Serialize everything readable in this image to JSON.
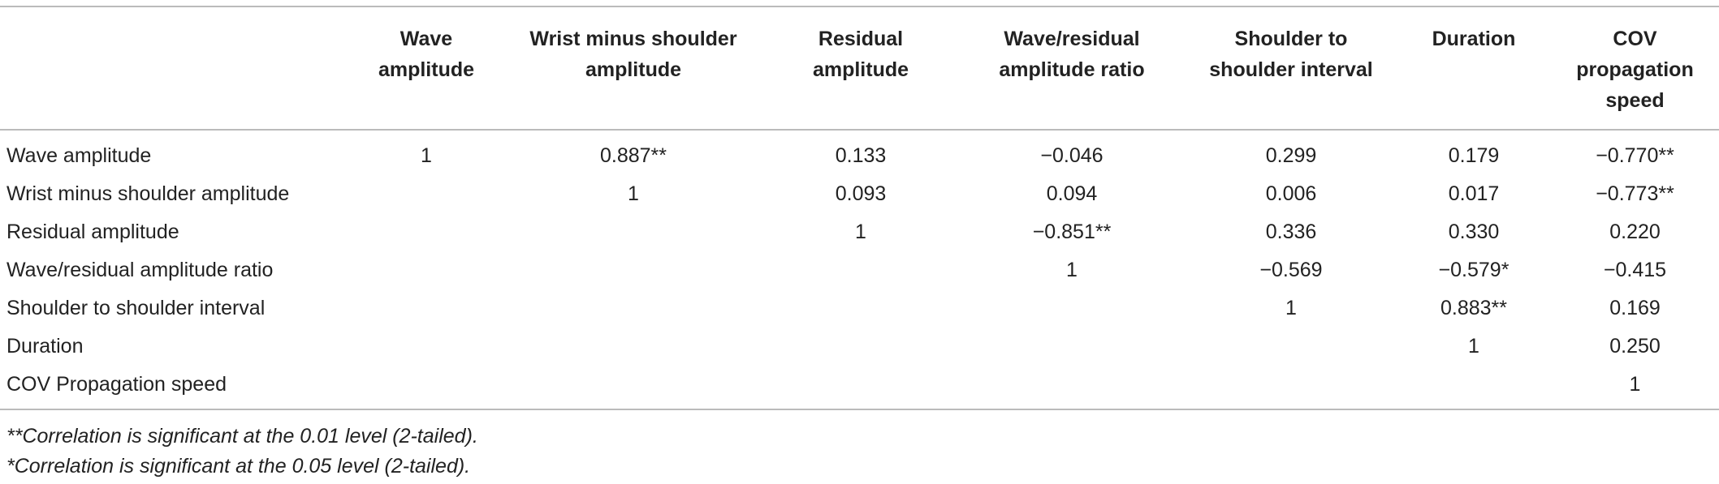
{
  "table": {
    "header": [
      "Wave amplitude",
      "Wrist minus shoulder amplitude",
      "Residual amplitude",
      "Wave/residual amplitude ratio",
      "Shoulder to shoulder interval",
      "Duration",
      "COV propagation speed"
    ],
    "rows": [
      {
        "label": "Wave amplitude",
        "cells": [
          "1",
          "0.887**",
          "0.133",
          "−0.046",
          "0.299",
          "0.179",
          "−0.770**"
        ]
      },
      {
        "label": "Wrist minus shoulder amplitude",
        "cells": [
          null,
          "1",
          "0.093",
          "0.094",
          "0.006",
          "0.017",
          "−0.773**"
        ]
      },
      {
        "label": "Residual amplitude",
        "cells": [
          null,
          null,
          "1",
          "−0.851**",
          "0.336",
          "0.330",
          "0.220"
        ]
      },
      {
        "label": "Wave/residual amplitude ratio",
        "cells": [
          null,
          null,
          null,
          "1",
          "−0.569",
          "−0.579*",
          "−0.415"
        ]
      },
      {
        "label": "Shoulder to shoulder interval",
        "cells": [
          null,
          null,
          null,
          null,
          "1",
          "0.883**",
          "0.169"
        ]
      },
      {
        "label": "Duration",
        "cells": [
          null,
          null,
          null,
          null,
          null,
          "1",
          "0.250"
        ]
      },
      {
        "label": "COV Propagation speed",
        "cells": [
          null,
          null,
          null,
          null,
          null,
          null,
          "1"
        ]
      }
    ],
    "notes": [
      "**Correlation is significant at the 0.01 level (2-tailed).",
      "*Correlation is significant at the 0.05 level (2-tailed)."
    ]
  }
}
